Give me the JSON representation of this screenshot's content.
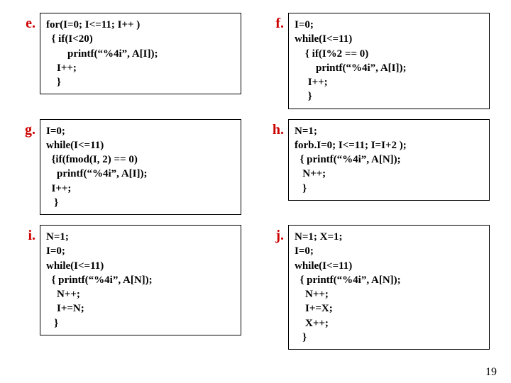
{
  "items": {
    "e": {
      "label": "e.",
      "code": "for(I=0; I<=11; I++ )\n  { if(I<20)\n        printf(“%4i”, A[I]);\n    I++;\n    }"
    },
    "f": {
      "label": "f.",
      "code": "I=0;\nwhile(I<=11)\n    { if(I%2 == 0)\n        printf(“%4i”, A[I]);\n     I++;\n     }"
    },
    "g": {
      "label": "g.",
      "code": "I=0;\nwhile(I<=11)\n  {if(fmod(I, 2) == 0)\n    printf(“%4i”, A[I]);\n  I++;\n   }"
    },
    "h": {
      "label": "h.",
      "code": "N=1;\nforb.I=0; I<=11; I=I+2 );\n  { printf(“%4i”, A[N]);\n   N++;\n   }"
    },
    "i": {
      "label": "i.",
      "code": "N=1;\nI=0;\nwhile(I<=11)\n  { printf(“%4i”, A[N]);\n    N++;\n    I+=N;\n   }"
    },
    "j": {
      "label": "j.",
      "code": "N=1; X=1;\nI=0;\nwhile(I<=11)\n  { printf(“%4i”, A[N]);\n    N++;\n    I+=X;\n    X++;\n   }"
    }
  },
  "page_number": "19"
}
